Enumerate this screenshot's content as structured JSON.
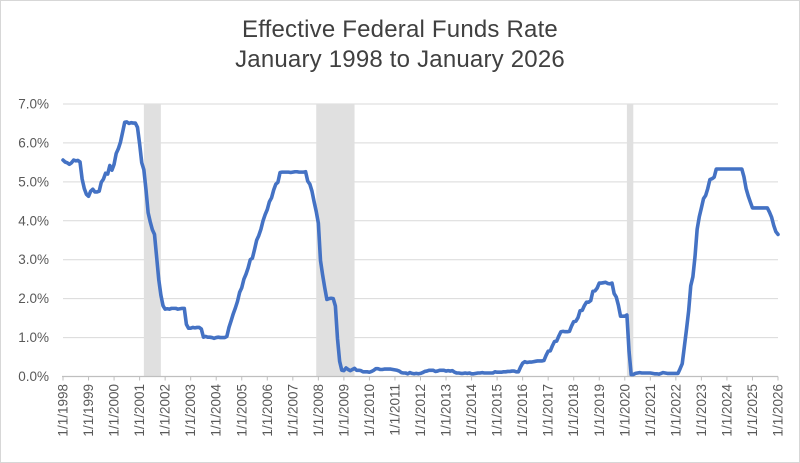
{
  "title": {
    "line1": "Effective Federal Funds Rate",
    "line2": "January 1998 to January 2026"
  },
  "colors": {
    "line": "#4472C4",
    "gridline": "#D9D9D9",
    "axis_line": "#BFBFBF",
    "recession_band": "#E0E0E0",
    "title_text": "#404040",
    "axis_text": "#595959",
    "frame_border": "#D7D7D7",
    "background": "#FFFFFF"
  },
  "chart_data": {
    "type": "line",
    "title": "Effective Federal Funds Rate",
    "subtitle": "January 1998 to January 2026",
    "xlabel": "",
    "ylabel": "",
    "ylim": [
      0,
      7
    ],
    "y_tick_labels": [
      "0.0%",
      "1.0%",
      "2.0%",
      "3.0%",
      "4.0%",
      "5.0%",
      "6.0%",
      "7.0%"
    ],
    "x_tick_labels": [
      "1/1/1998",
      "1/1/1999",
      "1/1/2000",
      "1/1/2001",
      "1/1/2002",
      "1/1/2003",
      "1/1/2004",
      "1/1/2005",
      "1/1/2006",
      "1/1/2007",
      "1/1/2008",
      "1/1/2009",
      "1/1/2010",
      "1/1/2011",
      "1/1/2012",
      "1/1/2013",
      "1/1/2014",
      "1/1/2015",
      "1/1/2016",
      "1/1/2017",
      "1/1/2018",
      "1/1/2019",
      "1/1/2020",
      "1/1/2021",
      "1/1/2022",
      "1/1/2023",
      "1/1/2024",
      "1/1/2025",
      "1/1/2026"
    ],
    "x_start": "1998-01",
    "x_end": "2026-01",
    "x_interval": "monthly",
    "grid": "horizontal",
    "legend": "none",
    "shaded_regions": [
      {
        "name": "recession-2001",
        "from": "2001-03",
        "to": "2001-11"
      },
      {
        "name": "recession-2008-09",
        "from": "2007-12",
        "to": "2009-06"
      },
      {
        "name": "recession-2020",
        "from": "2020-02",
        "to": "2020-05"
      }
    ],
    "series": [
      {
        "name": "Effective Federal Funds Rate (%, monthly)",
        "values": [
          5.56,
          5.51,
          5.49,
          5.45,
          5.49,
          5.56,
          5.54,
          5.55,
          5.51,
          5.07,
          4.83,
          4.68,
          4.63,
          4.76,
          4.81,
          4.74,
          4.74,
          4.76,
          4.99,
          5.07,
          5.22,
          5.2,
          5.42,
          5.3,
          5.45,
          5.73,
          5.85,
          6.02,
          6.27,
          6.53,
          6.54,
          6.5,
          6.52,
          6.51,
          6.51,
          6.4,
          5.98,
          5.49,
          5.31,
          4.8,
          4.21,
          3.97,
          3.77,
          3.65,
          3.07,
          2.49,
          2.09,
          1.82,
          1.73,
          1.74,
          1.73,
          1.75,
          1.75,
          1.75,
          1.73,
          1.74,
          1.75,
          1.75,
          1.34,
          1.24,
          1.24,
          1.26,
          1.25,
          1.26,
          1.26,
          1.22,
          1.01,
          1.03,
          1.01,
          1.01,
          1.0,
          0.98,
          1.0,
          1.01,
          1.0,
          1.0,
          1.0,
          1.03,
          1.26,
          1.43,
          1.61,
          1.76,
          1.93,
          2.16,
          2.28,
          2.5,
          2.63,
          2.79,
          3.0,
          3.04,
          3.26,
          3.5,
          3.62,
          3.78,
          4.0,
          4.16,
          4.29,
          4.49,
          4.59,
          4.79,
          4.94,
          4.99,
          5.24,
          5.25,
          5.25,
          5.25,
          5.25,
          5.24,
          5.25,
          5.26,
          5.26,
          5.25,
          5.25,
          5.25,
          5.26,
          5.02,
          4.94,
          4.76,
          4.49,
          4.24,
          3.94,
          2.98,
          2.61,
          2.28,
          1.98,
          2.0,
          2.01,
          2.0,
          1.81,
          0.97,
          0.39,
          0.16,
          0.15,
          0.22,
          0.18,
          0.15,
          0.18,
          0.21,
          0.16,
          0.16,
          0.15,
          0.12,
          0.12,
          0.12,
          0.11,
          0.13,
          0.16,
          0.2,
          0.2,
          0.18,
          0.18,
          0.19,
          0.19,
          0.19,
          0.19,
          0.18,
          0.17,
          0.16,
          0.14,
          0.1,
          0.09,
          0.09,
          0.07,
          0.1,
          0.08,
          0.07,
          0.08,
          0.07,
          0.08,
          0.1,
          0.13,
          0.14,
          0.16,
          0.16,
          0.16,
          0.13,
          0.14,
          0.16,
          0.16,
          0.16,
          0.14,
          0.15,
          0.14,
          0.15,
          0.11,
          0.09,
          0.09,
          0.08,
          0.08,
          0.09,
          0.08,
          0.09,
          0.07,
          0.07,
          0.08,
          0.09,
          0.09,
          0.1,
          0.09,
          0.09,
          0.09,
          0.09,
          0.09,
          0.12,
          0.11,
          0.11,
          0.11,
          0.12,
          0.12,
          0.13,
          0.13,
          0.14,
          0.14,
          0.12,
          0.12,
          0.24,
          0.34,
          0.38,
          0.36,
          0.37,
          0.37,
          0.38,
          0.39,
          0.4,
          0.4,
          0.4,
          0.41,
          0.54,
          0.65,
          0.66,
          0.79,
          0.9,
          0.91,
          1.04,
          1.15,
          1.16,
          1.15,
          1.15,
          1.16,
          1.3,
          1.41,
          1.42,
          1.51,
          1.69,
          1.7,
          1.82,
          1.91,
          1.91,
          1.95,
          2.19,
          2.2,
          2.27,
          2.4,
          2.4,
          2.41,
          2.42,
          2.39,
          2.38,
          2.4,
          2.13,
          2.04,
          1.83,
          1.55,
          1.55,
          1.55,
          1.58,
          0.65,
          0.05,
          0.05,
          0.08,
          0.09,
          0.1,
          0.09,
          0.09,
          0.09,
          0.09,
          0.09,
          0.08,
          0.07,
          0.07,
          0.06,
          0.08,
          0.1,
          0.09,
          0.08,
          0.08,
          0.08,
          0.08,
          0.08,
          0.08,
          0.2,
          0.33,
          0.77,
          1.21,
          1.68,
          2.33,
          2.56,
          3.08,
          3.78,
          4.1,
          4.33,
          4.57,
          4.65,
          4.83,
          5.06,
          5.08,
          5.12,
          5.33,
          5.33,
          5.33,
          5.33,
          5.33,
          5.33,
          5.33,
          5.33,
          5.33,
          5.33,
          5.33,
          5.33,
          5.33,
          5.13,
          4.83,
          4.64,
          4.48,
          4.33,
          4.33,
          4.33,
          4.33,
          4.33,
          4.33,
          4.33,
          4.33,
          4.22,
          4.09,
          3.88,
          3.72,
          3.65
        ]
      }
    ]
  }
}
